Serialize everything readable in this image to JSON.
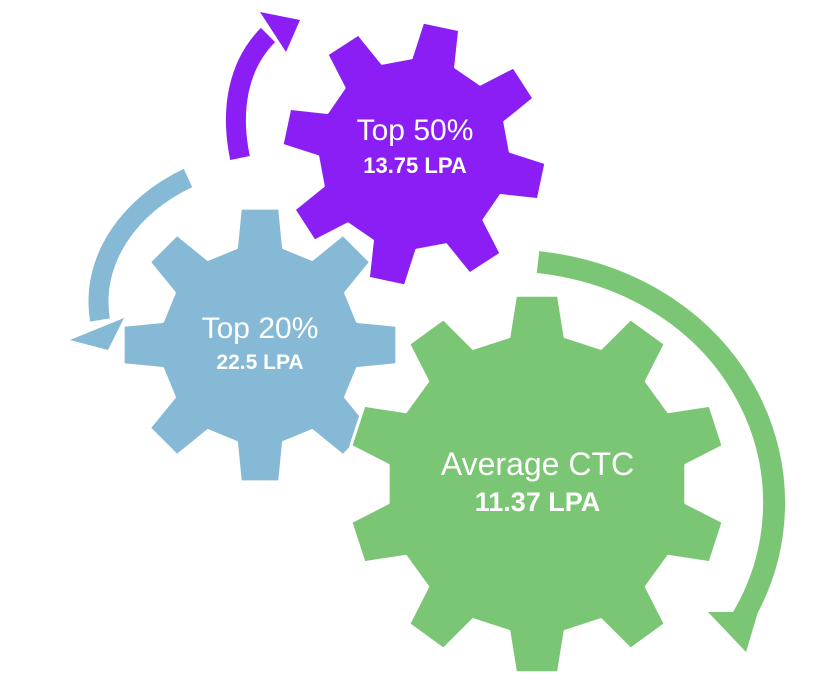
{
  "colors": {
    "top50": "#8b1ef5",
    "top20": "#85b9d5",
    "average": "#7bc674",
    "stroke": "#ffffff"
  },
  "gears": {
    "top50": {
      "title": "Top 50%",
      "value": "13.75 LPA"
    },
    "top20": {
      "title": "Top 20%",
      "value": "22.5 LPA"
    },
    "average": {
      "title": "Average CTC",
      "value": "11.37 LPA"
    }
  },
  "arrows": {
    "top50_arrow": {
      "icon": "curved-arrow-icon",
      "color": "#8b1ef5"
    },
    "top20_arrow": {
      "icon": "curved-arrow-icon",
      "color": "#85b9d5"
    },
    "average_arrow": {
      "icon": "curved-arrow-icon",
      "color": "#7bc674"
    }
  }
}
